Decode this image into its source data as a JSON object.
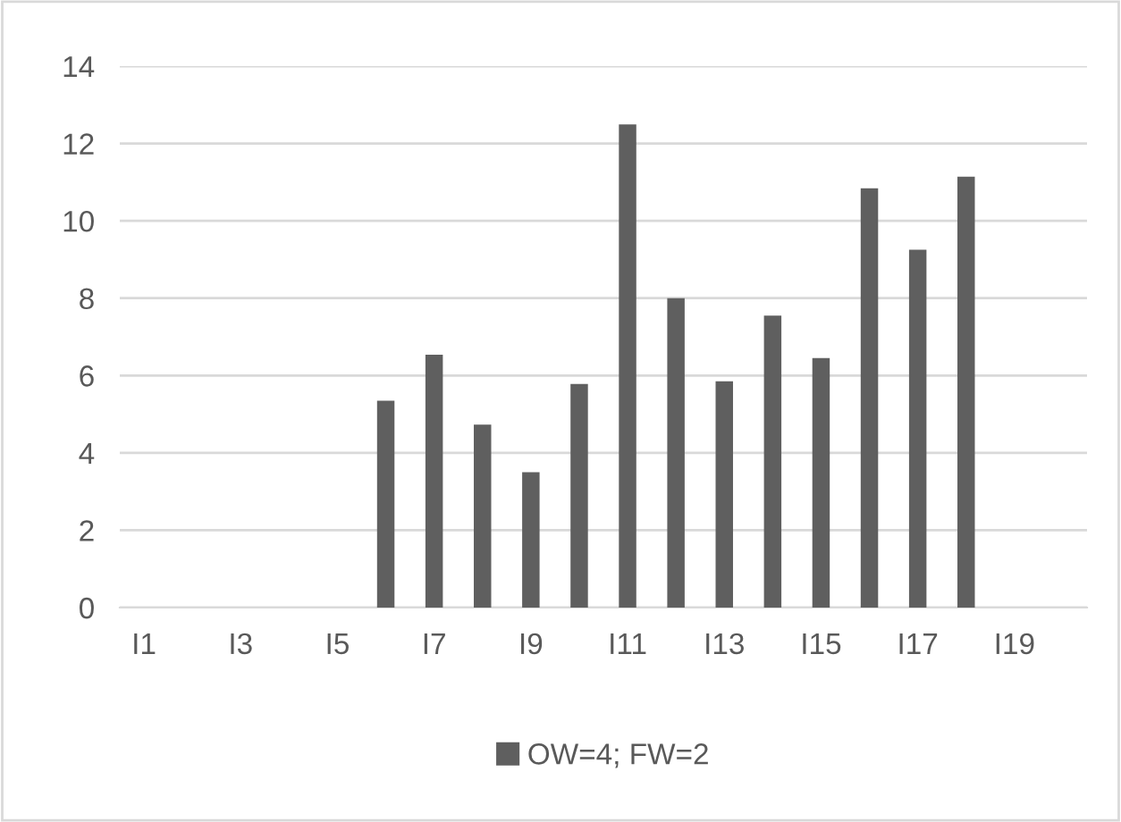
{
  "chart_data": {
    "type": "bar",
    "categories": [
      "I1",
      null,
      "I3",
      null,
      "I5",
      null,
      "I7",
      null,
      "I9",
      null,
      "I11",
      null,
      "I13",
      null,
      "I15",
      null,
      "I17",
      null,
      "I19",
      null
    ],
    "series": [
      {
        "name": "OW=4; FW=2",
        "color": "#5f5f5f",
        "values": [
          null,
          null,
          null,
          null,
          null,
          5.35,
          6.54,
          4.73,
          3.5,
          5.78,
          12.49,
          8.0,
          5.85,
          7.55,
          6.45,
          10.84,
          9.25,
          11.14,
          null,
          null
        ]
      }
    ],
    "ylim": [
      0,
      14
    ],
    "yticks": [
      0,
      2,
      4,
      6,
      8,
      10,
      12,
      14
    ],
    "grid": "y",
    "legend": "bottom"
  }
}
